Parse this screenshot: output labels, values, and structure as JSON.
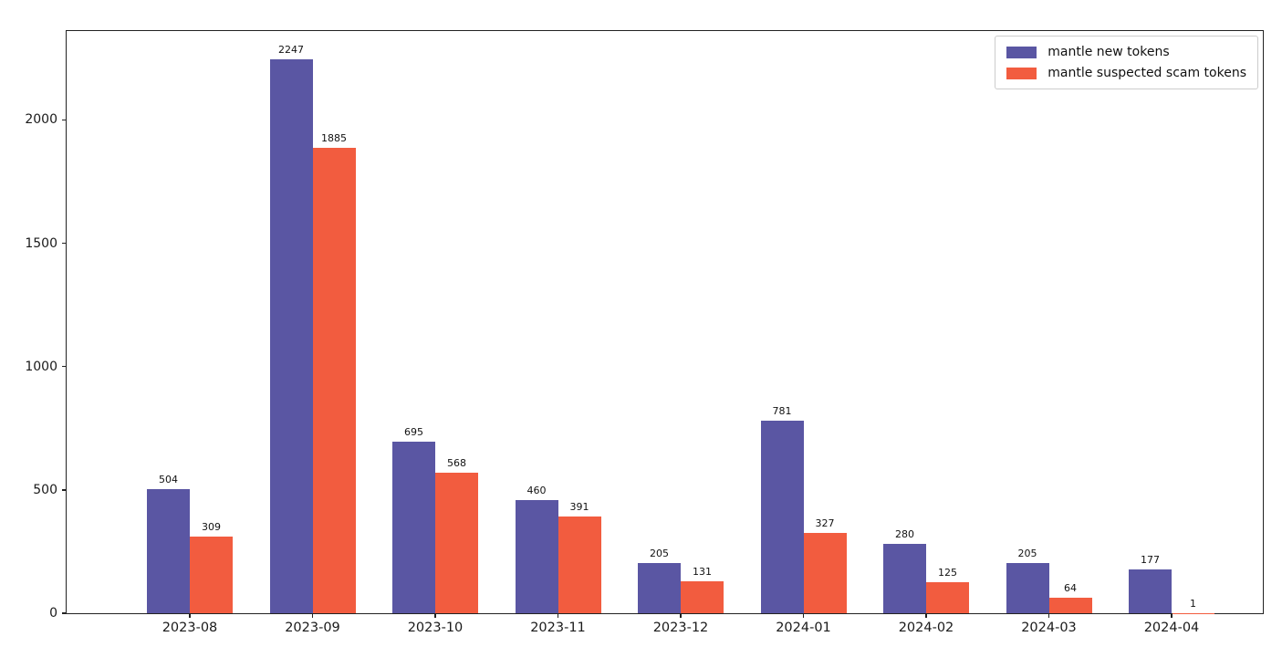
{
  "chart_data": {
    "type": "bar",
    "categories": [
      "2023-08",
      "2023-09",
      "2023-10",
      "2023-11",
      "2023-12",
      "2024-01",
      "2024-02",
      "2024-03",
      "2024-04"
    ],
    "series": [
      {
        "name": "mantle new tokens",
        "color": "#5a56a3",
        "values": [
          504,
          2247,
          695,
          460,
          205,
          781,
          280,
          205,
          177
        ]
      },
      {
        "name": "mantle suspected scam tokens",
        "color": "#f25c3f",
        "values": [
          309,
          1885,
          568,
          391,
          131,
          327,
          125,
          64,
          1
        ]
      }
    ],
    "title": "",
    "xlabel": "",
    "ylabel": "",
    "ylim": [
      0,
      2360
    ],
    "yticks": [
      0,
      500,
      1000,
      1500,
      2000
    ],
    "grid": false,
    "bar_labels": true,
    "legend_position": "upper right",
    "axis_color": "#222222",
    "text_color": "#1a1a1a",
    "background_color": "#ffffff"
  }
}
